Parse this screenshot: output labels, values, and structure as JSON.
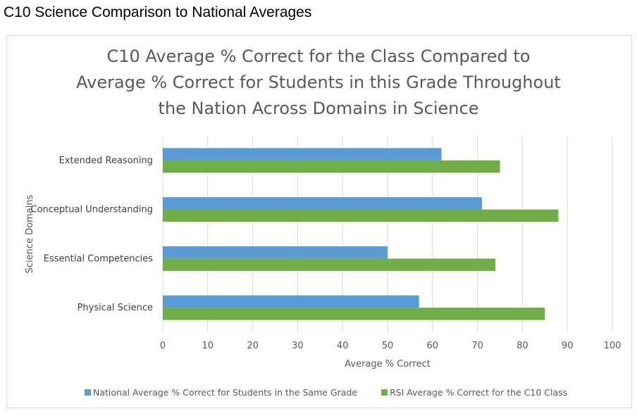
{
  "page": {
    "heading": "C10 Science Comparison to National Averages"
  },
  "chart_data": {
    "type": "bar",
    "orientation": "horizontal",
    "title_lines": [
      "C10 Average % Correct for the Class Compared to",
      "Average % Correct for Students in this Grade Throughout",
      "the Nation Across Domains in Science"
    ],
    "categories": [
      "Extended Reasoning",
      "Conceptual Understanding",
      "Essential Competencies",
      "Physical Science"
    ],
    "series": [
      {
        "name": "National Average % Correct for Students in the Same Grade",
        "color": "#5b9bd5",
        "values": [
          62,
          71,
          50,
          57
        ]
      },
      {
        "name": "RSI Average % Correct for the C10 Class",
        "color": "#70ad47",
        "values": [
          75,
          88,
          74,
          85
        ]
      }
    ],
    "xlabel": "Average % Correct",
    "ylabel": "Science Domains",
    "xlim": [
      0,
      100
    ],
    "xticks": [
      "0",
      "10",
      "20",
      "30",
      "40",
      "50",
      "60",
      "70",
      "80",
      "90",
      "100"
    ],
    "grid": true,
    "legend_position": "bottom"
  }
}
